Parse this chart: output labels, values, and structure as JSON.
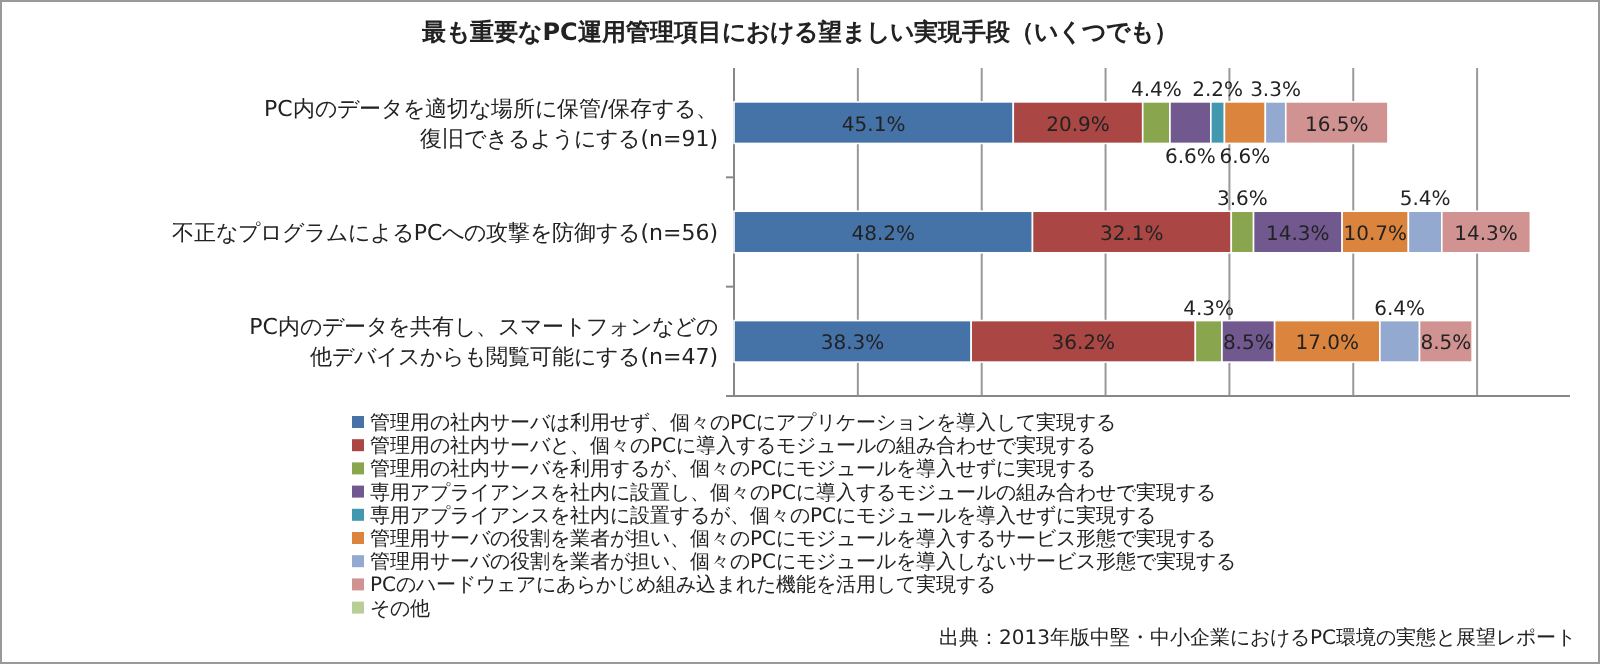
{
  "chart_data": {
    "type": "bar",
    "orientation": "horizontal",
    "stacked": true,
    "title": "最も重要なPC運用管理項目における望ましい実現手段（いくつでも）",
    "categories": [
      "PC内のデータを適切な場所に保管/保存する、復旧できるようにする(n=91)",
      "不正なプログラムによるPCへの攻撃を防御する(n=56)",
      "PC内のデータを共有し、スマートフォンなどの他デバイスからも閲覧可能にする(n=47)"
    ],
    "series": [
      {
        "name": "管理用の社内サーバは利用せず、個々のPCにアプリケーションを導入して実現する",
        "color": "#4572a7",
        "values": [
          45.1,
          48.2,
          38.3
        ],
        "value_labels": [
          "45.1%",
          "48.2%",
          "38.3%"
        ]
      },
      {
        "name": "管理用の社内サーバと、個々のPCに導入するモジュールの組み合わせで実現する",
        "color": "#aa4643",
        "values": [
          20.9,
          32.1,
          36.2
        ],
        "value_labels": [
          "20.9%",
          "32.1%",
          "36.2%"
        ]
      },
      {
        "name": "管理用の社内サーバを利用するが、個々のPCにモジュールを導入せずに実現する",
        "color": "#89a54e",
        "values": [
          4.4,
          3.6,
          4.3
        ],
        "value_labels": [
          "4.4%",
          "3.6%",
          "4.3%"
        ]
      },
      {
        "name": "専用アプライアンスを社内に設置し、個々のPCに導入するモジュールの組み合わせで実現する",
        "color": "#71588f",
        "values": [
          6.6,
          14.3,
          8.5
        ],
        "value_labels": [
          "6.6%",
          "14.3%",
          "8.5%"
        ]
      },
      {
        "name": "専用アプライアンスを社内に設置するが、個々のPCにモジュールを導入せずに実現する",
        "color": "#4198af",
        "values": [
          2.2,
          null,
          null
        ],
        "value_labels": [
          "2.2%",
          null,
          null
        ]
      },
      {
        "name": "管理用サーバの役割を業者が担い、個々のPCにモジュールを導入するサービス形態で実現する",
        "color": "#db843d",
        "values": [
          6.6,
          10.7,
          17.0
        ],
        "value_labels": [
          "6.6%",
          "10.7%",
          "17.0%"
        ]
      },
      {
        "name": "管理用サーバの役割を業者が担い、個々のPCにモジュールを導入しないサービス形態で実現する",
        "color": "#93a9cf",
        "values": [
          3.3,
          5.4,
          6.4
        ],
        "value_labels": [
          "3.3%",
          "5.4%",
          "6.4%"
        ]
      },
      {
        "name": "PCのハードウェアにあらかじめ組み込まれた機能を活用して実現する",
        "color": "#d19392",
        "values": [
          16.5,
          14.3,
          8.5
        ],
        "value_labels": [
          "16.5%",
          "14.3%",
          "8.5%"
        ]
      },
      {
        "name": "その他",
        "color": "#b9cd96",
        "values": [
          null,
          null,
          null
        ]
      }
    ],
    "xlim": [
      0,
      135
    ],
    "xticks": [
      {
        "value": 0,
        "label": null
      },
      {
        "value": 20,
        "label": null
      },
      {
        "value": 40,
        "label": null
      },
      {
        "value": 60,
        "label": null
      },
      {
        "value": 80,
        "label": null
      },
      {
        "value": 100,
        "label": null
      },
      {
        "value": 120,
        "label": null
      }
    ],
    "tick_labels": "y",
    "grid": "x",
    "legend": "bottom",
    "annotations": [
      "出典：2013年版中堅・中小企業におけるPC環境の実態と展望レポート"
    ]
  }
}
